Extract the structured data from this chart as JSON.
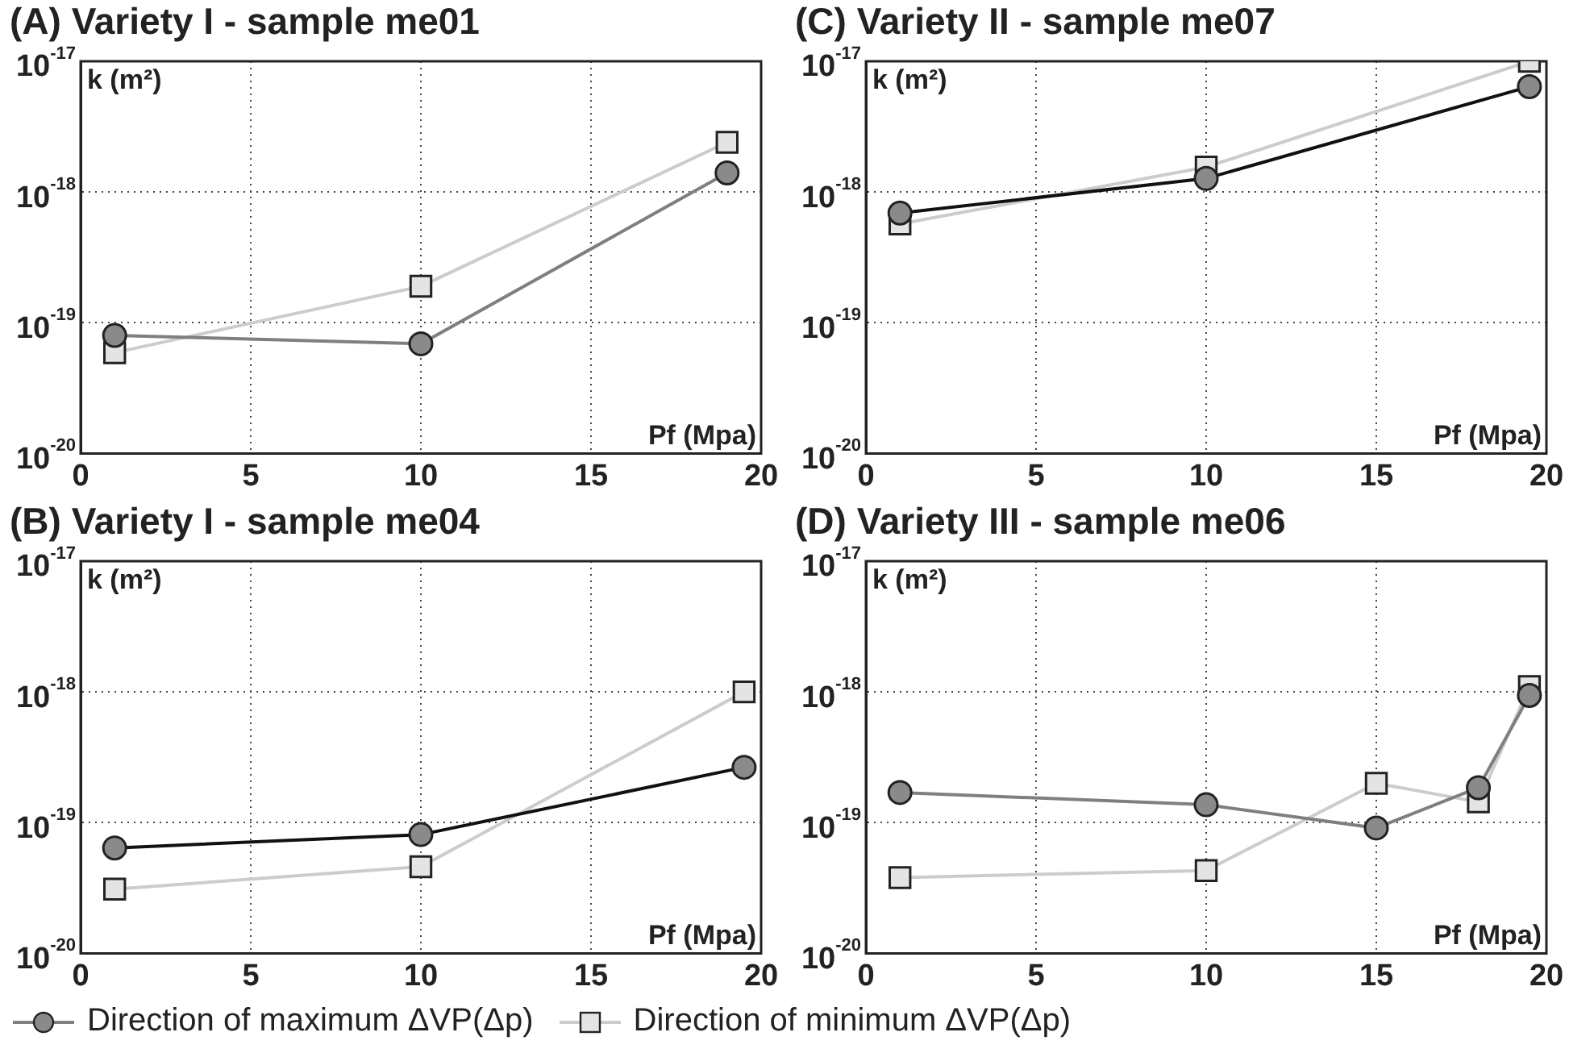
{
  "chart_data": [
    {
      "type": "line",
      "title": "(A) Variety I - sample me01",
      "xlabel": "Pf (Mpa)",
      "ylabel": "k (m²)",
      "log": "y",
      "grid": true,
      "legend": "bottom",
      "xlim": [
        0,
        20
      ],
      "xticks": [
        0,
        5,
        10,
        15,
        20
      ],
      "ylim": [
        1e-20,
        1e-17
      ],
      "yticks": [
        {
          "value": 1e-20,
          "label": "10$^{-20}$"
        },
        {
          "value": 1e-19,
          "label": "10$^{-19}$"
        },
        {
          "value": 1e-18,
          "label": "10$^{-18}$"
        },
        {
          "value": 1e-17,
          "label": "10$^{-17}$"
        }
      ],
      "series": [
        {
          "name": "Direction of maximum ΔVP(Δp)",
          "color": "#7f7f7f",
          "marker": "circle",
          "x": [
            1,
            10,
            19
          ],
          "values": [
            8e-20,
            6.9e-20,
            1.4e-18
          ]
        },
        {
          "name": "Direction of minimum ΔVP(Δp)",
          "color": "#cccccc",
          "marker": "square",
          "x": [
            1,
            10,
            19
          ],
          "values": [
            5.9e-20,
            1.9e-19,
            2.4e-18
          ]
        }
      ]
    },
    {
      "type": "line",
      "title": "(C) Variety II - sample me07",
      "xlabel": "Pf (Mpa)",
      "ylabel": "k (m²)",
      "log": "y",
      "grid": true,
      "xlim": [
        0,
        20
      ],
      "xticks": [
        0,
        5,
        10,
        15,
        20
      ],
      "ylim": [
        1e-20,
        1e-17
      ],
      "yticks": [
        {
          "value": 1e-20,
          "label": "10$^{-20}$"
        },
        {
          "value": 1e-19,
          "label": "10$^{-19}$"
        },
        {
          "value": 1e-18,
          "label": "10$^{-18}$"
        },
        {
          "value": 1e-17,
          "label": "10$^{-17}$"
        }
      ],
      "series": [
        {
          "color": "#111111",
          "marker": "circle",
          "x": [
            1,
            10,
            19.5
          ],
          "values": [
            6.9e-19,
            1.27e-18,
            6.4e-18
          ]
        },
        {
          "color": "#cccccc",
          "marker": "square",
          "x": [
            1,
            10,
            19.5
          ],
          "values": [
            5.7e-19,
            1.55e-18,
            1e-17
          ]
        }
      ]
    },
    {
      "type": "line",
      "title": "(B) Variety I - sample me04",
      "xlabel": "Pf (Mpa)",
      "ylabel": "k (m²)",
      "log": "y",
      "grid": true,
      "xlim": [
        0,
        20
      ],
      "xticks": [
        0,
        5,
        10,
        15,
        20
      ],
      "ylim": [
        1e-20,
        1e-17
      ],
      "yticks": [
        {
          "value": 1e-20,
          "label": "10$^{-20}$"
        },
        {
          "value": 1e-19,
          "label": "10$^{-19}$"
        },
        {
          "value": 1e-18,
          "label": "10$^{-18}$"
        },
        {
          "value": 1e-17,
          "label": "10$^{-17}$"
        }
      ],
      "series": [
        {
          "color": "#111111",
          "marker": "circle",
          "x": [
            1,
            10,
            19.5
          ],
          "values": [
            6.4e-20,
            8.1e-20,
            2.65e-19
          ]
        },
        {
          "color": "#cccccc",
          "marker": "square",
          "x": [
            1,
            10,
            19.5
          ],
          "values": [
            3.1e-20,
            4.6e-20,
            1e-18
          ]
        }
      ]
    },
    {
      "type": "line",
      "title": "(D) Variety III - sample me06",
      "xlabel": "Pf (Mpa)",
      "ylabel": "k (m²)",
      "log": "y",
      "grid": true,
      "xlim": [
        0,
        20
      ],
      "xticks": [
        0,
        5,
        10,
        15,
        20
      ],
      "ylim": [
        1e-20,
        1e-17
      ],
      "yticks": [
        {
          "value": 1e-20,
          "label": "10$^{-20}$"
        },
        {
          "value": 1e-19,
          "label": "10$^{-19}$"
        },
        {
          "value": 1e-18,
          "label": "10$^{-18}$"
        },
        {
          "value": 1e-17,
          "label": "10$^{-17}$"
        }
      ],
      "series": [
        {
          "color": "#7f7f7f",
          "marker": "circle",
          "x": [
            1,
            10,
            15,
            18,
            19.5
          ],
          "values": [
            1.7e-19,
            1.37e-19,
            9.1e-20,
            1.85e-19,
            9.4e-19
          ]
        },
        {
          "color": "#cccccc",
          "marker": "square",
          "x": [
            1,
            10,
            15,
            18,
            19.5
          ],
          "values": [
            3.8e-20,
            4.3e-20,
            2e-19,
            1.44e-19,
            1.1e-18
          ]
        }
      ]
    }
  ]
}
